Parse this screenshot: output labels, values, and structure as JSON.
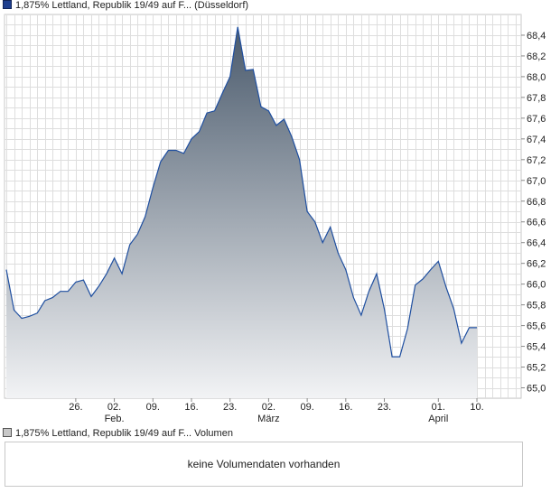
{
  "legend_top": {
    "label": "1,875% Lettland, Republik 19/49 auf F... (Düsseldorf)",
    "color": "#1f3f8f"
  },
  "legend_bottom": {
    "label": "1,875% Lettland, Republik 19/49 auf F... Volumen",
    "color": "#c8c8c8"
  },
  "volume_panel": {
    "message": "keine Volumendaten vorhanden"
  },
  "chart_data": {
    "type": "area",
    "ylim": [
      64.9,
      68.6
    ],
    "y_ticks": [
      "65,0",
      "65,2",
      "65,4",
      "65,6",
      "65,8",
      "66,0",
      "66,2",
      "66,4",
      "66,6",
      "66,8",
      "67,0",
      "67,2",
      "67,4",
      "67,6",
      "67,8",
      "68,0",
      "68,2",
      "68,4"
    ],
    "x_ticks": [
      {
        "day": 9,
        "label": "26."
      },
      {
        "day": 14,
        "label": "02.",
        "month": "Feb."
      },
      {
        "day": 19,
        "label": "09."
      },
      {
        "day": 24,
        "label": "16."
      },
      {
        "day": 29,
        "label": "23."
      },
      {
        "day": 34,
        "label": "02.",
        "month": "März"
      },
      {
        "day": 39,
        "label": "09."
      },
      {
        "day": 44,
        "label": "16."
      },
      {
        "day": 49,
        "label": "23."
      },
      {
        "day": 56,
        "label": "01.",
        "month": "April"
      },
      {
        "day": 61,
        "label": "10."
      }
    ],
    "x_domain": [
      0,
      66.5
    ],
    "points": [
      [
        0,
        66.14
      ],
      [
        1,
        65.75
      ],
      [
        2,
        65.67
      ],
      [
        3,
        65.69
      ],
      [
        4,
        65.72
      ],
      [
        5,
        65.84
      ],
      [
        6,
        65.87
      ],
      [
        7,
        65.93
      ],
      [
        8,
        65.93
      ],
      [
        9,
        66.02
      ],
      [
        10,
        66.04
      ],
      [
        11,
        65.88
      ],
      [
        12,
        65.98
      ],
      [
        13,
        66.1
      ],
      [
        14,
        66.25
      ],
      [
        15,
        66.1
      ],
      [
        16,
        66.38
      ],
      [
        17,
        66.48
      ],
      [
        18,
        66.65
      ],
      [
        19,
        66.93
      ],
      [
        20,
        67.18
      ],
      [
        21,
        67.29
      ],
      [
        22,
        67.29
      ],
      [
        23,
        67.26
      ],
      [
        24,
        67.4
      ],
      [
        25,
        67.47
      ],
      [
        26,
        67.65
      ],
      [
        27,
        67.67
      ],
      [
        28,
        67.84
      ],
      [
        29,
        68.0
      ],
      [
        30,
        68.48
      ],
      [
        31,
        68.06
      ],
      [
        32,
        68.07
      ],
      [
        33,
        67.71
      ],
      [
        34,
        67.67
      ],
      [
        35,
        67.53
      ],
      [
        36,
        67.59
      ],
      [
        37,
        67.42
      ],
      [
        38,
        67.2
      ],
      [
        39,
        66.7
      ],
      [
        40,
        66.6
      ],
      [
        41,
        66.4
      ],
      [
        42,
        66.55
      ],
      [
        43,
        66.3
      ],
      [
        44,
        66.14
      ],
      [
        45,
        65.87
      ],
      [
        46,
        65.7
      ],
      [
        47,
        65.93
      ],
      [
        48,
        66.1
      ],
      [
        49,
        65.76
      ],
      [
        50,
        65.3
      ],
      [
        51,
        65.3
      ],
      [
        52,
        65.57
      ],
      [
        53,
        65.99
      ],
      [
        54,
        66.05
      ],
      [
        55,
        66.14
      ],
      [
        56,
        66.22
      ],
      [
        57,
        65.97
      ],
      [
        58,
        65.76
      ],
      [
        59,
        65.43
      ],
      [
        60,
        65.58
      ],
      [
        61,
        65.58
      ]
    ],
    "line_color": "#1f4fa0",
    "fill_top_color": "#4a5a6c",
    "fill_bottom_color": "#f2f3f5",
    "grid": true
  }
}
